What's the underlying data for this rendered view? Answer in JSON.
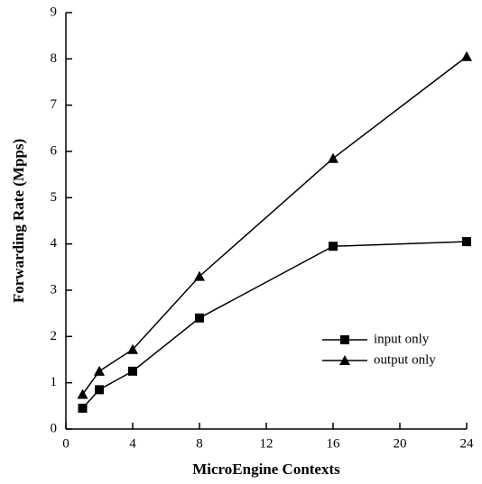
{
  "chart_data": {
    "type": "line",
    "xlabel": "MicroEngine Contexts",
    "ylabel": "Forwarding Rate (Mpps)",
    "x": [
      1,
      2,
      4,
      8,
      16,
      24
    ],
    "series": [
      {
        "name": "input only",
        "color": "#000000",
        "marker": "square",
        "values": [
          0.45,
          0.85,
          1.25,
          2.4,
          3.95,
          4.05
        ]
      },
      {
        "name": "output only",
        "color": "#000000",
        "marker": "triangle",
        "values": [
          0.75,
          1.25,
          1.72,
          3.3,
          5.85,
          8.05
        ]
      }
    ],
    "xlim": [
      0,
      24
    ],
    "xticks": [
      0,
      4,
      8,
      12,
      16,
      20,
      24
    ],
    "ylim": [
      0,
      9
    ],
    "yticks": [
      0,
      1,
      2,
      3,
      4,
      5,
      6,
      7,
      8,
      9
    ],
    "grid": false,
    "legend": "lower right"
  }
}
